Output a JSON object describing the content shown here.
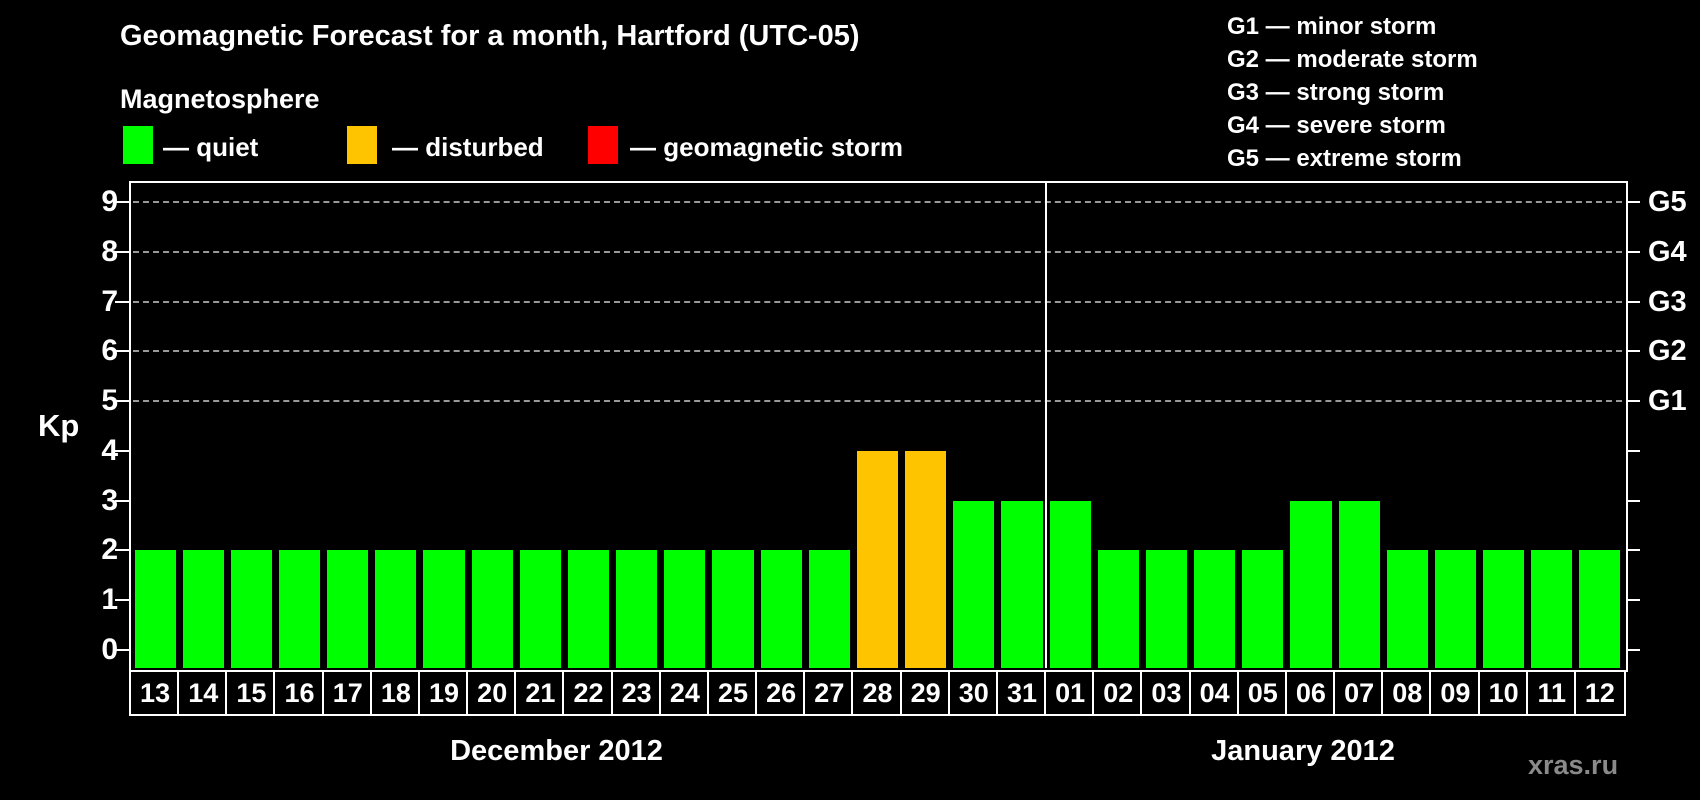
{
  "header": {
    "title": "Geomagnetic Forecast for a month, Hartford (UTC-05)",
    "subtitle": "Magnetosphere"
  },
  "legend": {
    "items": [
      {
        "name": "quiet",
        "label": "— quiet",
        "color": "#00ff00"
      },
      {
        "name": "disturbed",
        "label": "— disturbed",
        "color": "#ffc400"
      },
      {
        "name": "storm",
        "label": "— geomagnetic storm",
        "color": "#ff0000"
      }
    ]
  },
  "g_scale_legend": {
    "lines": [
      "G1 — minor storm",
      "G2 — moderate storm",
      "G3 — strong storm",
      "G4 — severe storm",
      "G5 — extreme storm"
    ]
  },
  "watermark": "xras.ru",
  "chart_data": {
    "type": "bar",
    "title": "Geomagnetic Forecast for a month, Hartford (UTC-05)",
    "ylabel": "Kp",
    "ylim": [
      0,
      9
    ],
    "yticks": [
      0,
      1,
      2,
      3,
      4,
      5,
      6,
      7,
      8,
      9
    ],
    "gridlines_at_kp": [
      5,
      6,
      7,
      8,
      9
    ],
    "grid_style": "dashed horizontal lines at storm levels only",
    "right_axis_labels": [
      {
        "kp": 5,
        "label": "G1"
      },
      {
        "kp": 6,
        "label": "G2"
      },
      {
        "kp": 7,
        "label": "G3"
      },
      {
        "kp": 8,
        "label": "G4"
      },
      {
        "kp": 9,
        "label": "G5"
      }
    ],
    "legend_position": "top-left",
    "months": [
      {
        "label": "December 2012",
        "days": [
          "13",
          "14",
          "15",
          "16",
          "17",
          "18",
          "19",
          "20",
          "21",
          "22",
          "23",
          "24",
          "25",
          "26",
          "27",
          "28",
          "29",
          "30",
          "31"
        ],
        "values": [
          2,
          2,
          2,
          2,
          2,
          2,
          2,
          2,
          2,
          2,
          2,
          2,
          2,
          2,
          2,
          4,
          4,
          3,
          3
        ],
        "statuses": [
          "quiet",
          "quiet",
          "quiet",
          "quiet",
          "quiet",
          "quiet",
          "quiet",
          "quiet",
          "quiet",
          "quiet",
          "quiet",
          "quiet",
          "quiet",
          "quiet",
          "quiet",
          "disturbed",
          "disturbed",
          "quiet",
          "quiet"
        ]
      },
      {
        "label": "January 2012",
        "days": [
          "01",
          "02",
          "03",
          "04",
          "05",
          "06",
          "07",
          "08",
          "09",
          "10",
          "11",
          "12"
        ],
        "values": [
          3,
          2,
          2,
          2,
          2,
          3,
          3,
          2,
          2,
          2,
          2,
          2
        ],
        "statuses": [
          "quiet",
          "quiet",
          "quiet",
          "quiet",
          "quiet",
          "quiet",
          "quiet",
          "quiet",
          "quiet",
          "quiet",
          "quiet",
          "quiet"
        ]
      }
    ]
  }
}
